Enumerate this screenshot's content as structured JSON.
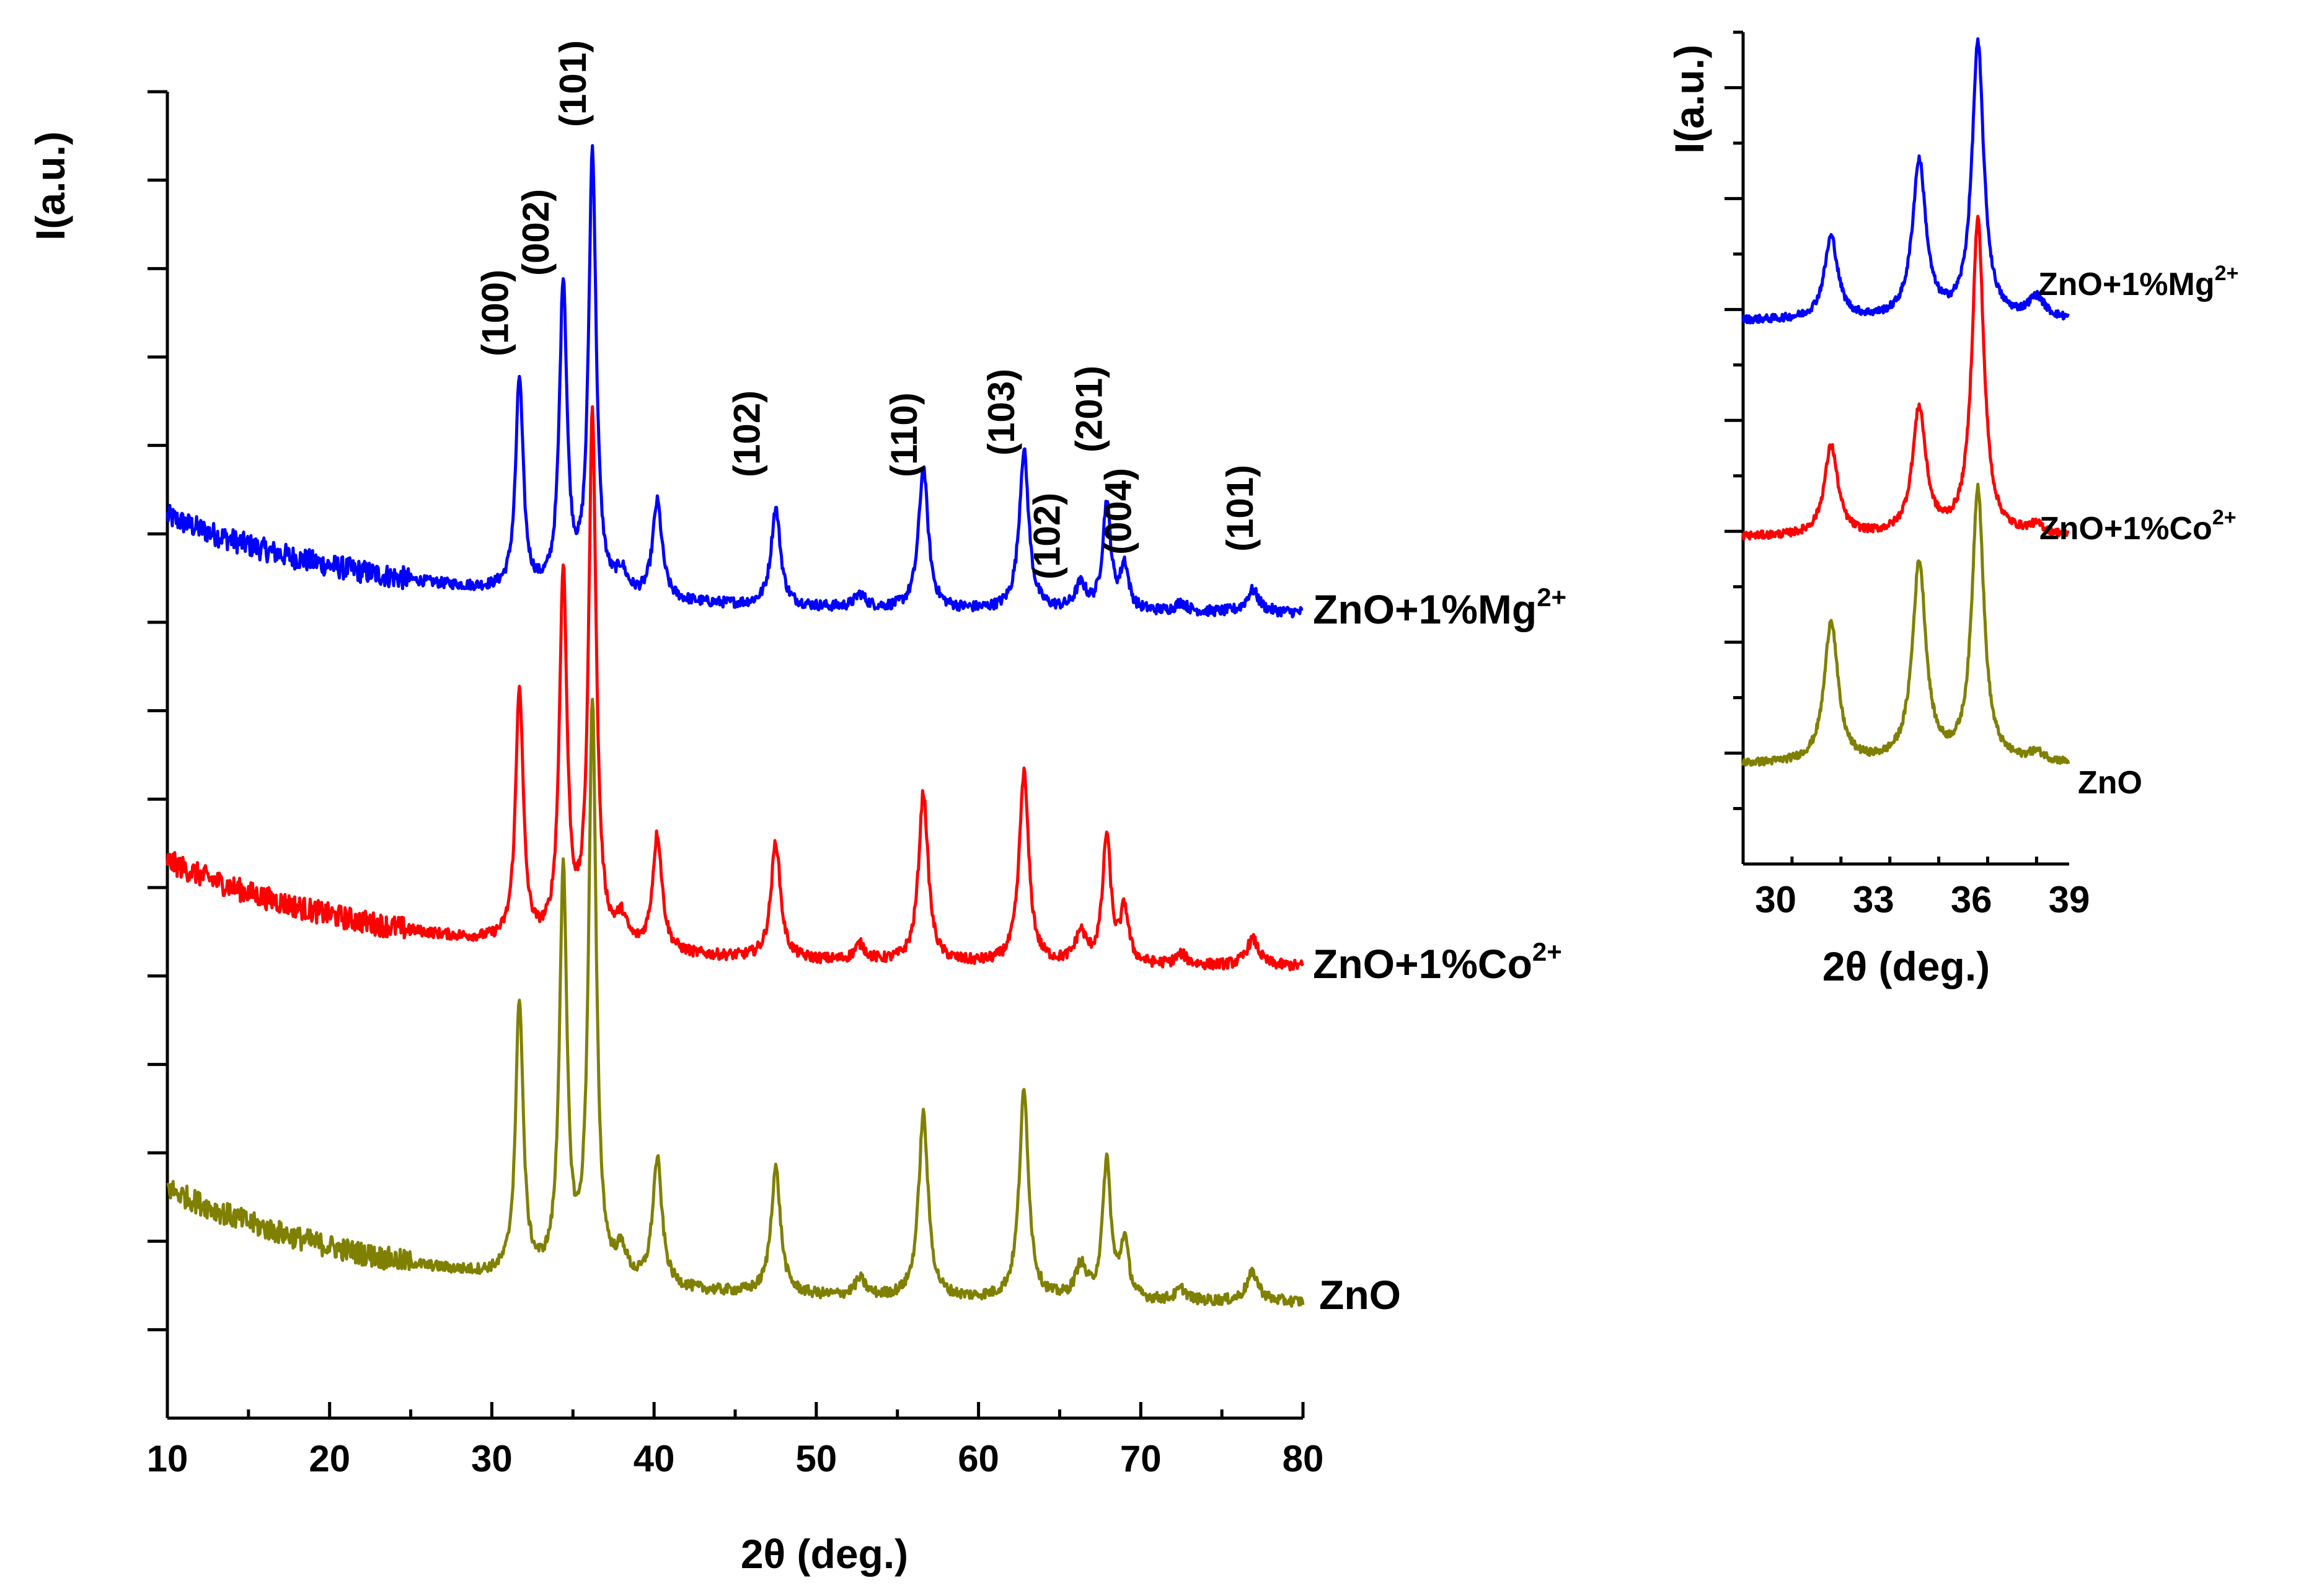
{
  "chart_data": [
    {
      "id": "main",
      "type": "line",
      "title": "",
      "xlabel": "2θ (deg.)",
      "ylabel": "I(a.u.)",
      "xlim": [
        10,
        80
      ],
      "ylim": [
        0,
        15
      ],
      "xticks": [
        10,
        20,
        30,
        40,
        50,
        60,
        70,
        80
      ],
      "peaks": [
        {
          "pos": 31.7,
          "h": 2.4,
          "w": 0.28
        },
        {
          "pos": 34.4,
          "h": 3.5,
          "w": 0.28
        },
        {
          "pos": 36.2,
          "h": 5.0,
          "w": 0.28
        },
        {
          "pos": 38.0,
          "h": 0.25,
          "w": 0.4
        },
        {
          "pos": 40.2,
          "h": 1.1,
          "w": 0.35
        },
        {
          "pos": 47.5,
          "h": 1.1,
          "w": 0.35
        },
        {
          "pos": 52.7,
          "h": 0.15,
          "w": 0.4
        },
        {
          "pos": 56.6,
          "h": 1.6,
          "w": 0.35
        },
        {
          "pos": 62.8,
          "h": 1.8,
          "w": 0.35
        },
        {
          "pos": 66.3,
          "h": 0.28,
          "w": 0.4
        },
        {
          "pos": 67.9,
          "h": 1.2,
          "w": 0.3
        },
        {
          "pos": 69.0,
          "h": 0.5,
          "w": 0.3
        },
        {
          "pos": 72.5,
          "h": 0.1,
          "w": 0.4
        },
        {
          "pos": 76.9,
          "h": 0.25,
          "w": 0.45
        }
      ],
      "series": [
        {
          "name": "ZnO+1%Mg²⁺",
          "color": "#0000ff",
          "offset": 9.1,
          "bg_start": 1.1,
          "bg_decay": 14,
          "scale": 1.0,
          "noise": 0.12
        },
        {
          "name": "ZnO+1%Co²⁺",
          "color": "#ff0000",
          "offset": 5.1,
          "bg_start": 1.2,
          "bg_decay": 14,
          "scale": 1.2,
          "noise": 0.12
        },
        {
          "name": "ZnO",
          "color": "#808000",
          "offset": 1.3,
          "bg_start": 1.3,
          "bg_decay": 14,
          "scale": 1.3,
          "noise": 0.12
        }
      ],
      "series_labels": {
        "mg_main": "ZnO+1%Mg",
        "co_main": "ZnO+1%Co",
        "sup": "2+",
        "zno": "ZnO"
      },
      "annotations": [
        {
          "text": "(100)",
          "x": 31.0
        },
        {
          "text": "(002)",
          "x": 33.5
        },
        {
          "text": "(101)",
          "x": 35.8
        },
        {
          "text": "(102)",
          "x": 46.5
        },
        {
          "text": "(110)",
          "x": 56.2
        },
        {
          "text": "(103)",
          "x": 62.2
        },
        {
          "text": "(102)",
          "x": 65.0
        },
        {
          "text": "(201)",
          "x": 67.6
        },
        {
          "text": "(004)",
          "x": 69.4
        },
        {
          "text": "(101)",
          "x": 76.9
        }
      ]
    },
    {
      "id": "inset",
      "type": "line",
      "title": "",
      "xlabel": "2θ (deg.)",
      "ylabel": "I(a.u.)",
      "xlim": [
        29,
        39
      ],
      "ylim": [
        0,
        15
      ],
      "xticks": [
        30,
        33,
        36,
        39
      ],
      "series": [
        {
          "name": "ZnO+1%Mg²⁺",
          "color": "#0000ff",
          "offset": 9.3,
          "bg": 0.5,
          "scale": 0.9
        },
        {
          "name": "ZnO+1%Co²⁺",
          "color": "#ff0000",
          "offset": 5.3,
          "bg": 0.6,
          "scale": 0.9
        },
        {
          "name": "ZnO",
          "color": "#808000",
          "offset": 1.3,
          "bg": 0.5,
          "scale": 0.9
        }
      ],
      "series_labels": {
        "mg": "ZnO+1%Mg",
        "co": "ZnO+1%Co",
        "sup": "2+",
        "zno": "ZnO"
      }
    }
  ]
}
